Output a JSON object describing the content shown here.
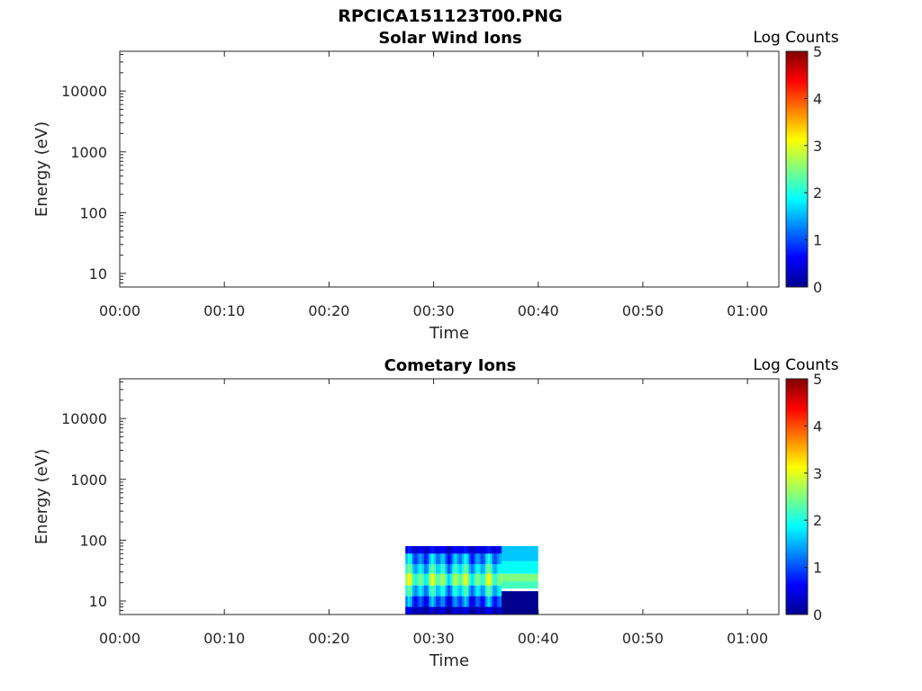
{
  "figure_title": "RPCICA151123T00.PNG",
  "colormap": [
    "#00008f",
    "#0000ff",
    "#0080ff",
    "#00ffff",
    "#80ff80",
    "#ffff00",
    "#ff8000",
    "#ff0000",
    "#800000"
  ],
  "chart_data": [
    {
      "type": "heatmap",
      "title": "Solar Wind Ions",
      "xlabel": "Time",
      "ylabel": "Energy (eV)",
      "x_ticks": [
        "00:00",
        "00:10",
        "00:20",
        "00:30",
        "00:40",
        "00:50",
        "01:00"
      ],
      "xlim_minutes": [
        0,
        63
      ],
      "y_scale": "log",
      "y_ticks": [
        10,
        100,
        1000,
        10000
      ],
      "y_tick_labels": [
        "10",
        "100",
        "1000",
        "10000"
      ],
      "ylim": [
        6,
        45000
      ],
      "colorbar_label": "Log Counts",
      "colorbar_ticks": [
        "0",
        "1",
        "2",
        "3",
        "4",
        "5"
      ],
      "clim": [
        0,
        5
      ],
      "data_blocks": []
    },
    {
      "type": "heatmap",
      "title": "Cometary Ions",
      "xlabel": "Time",
      "ylabel": "Energy (eV)",
      "x_ticks": [
        "00:00",
        "00:10",
        "00:20",
        "00:30",
        "00:40",
        "00:50",
        "01:00"
      ],
      "xlim_minutes": [
        0,
        63
      ],
      "y_scale": "log",
      "y_ticks": [
        10,
        100,
        1000,
        10000
      ],
      "y_tick_labels": [
        "10",
        "100",
        "1000",
        "10000"
      ],
      "ylim": [
        6,
        45000
      ],
      "colorbar_label": "Log Counts",
      "colorbar_ticks": [
        "0",
        "1",
        "2",
        "3",
        "4",
        "5"
      ],
      "clim": [
        0,
        5
      ],
      "data_blocks": [
        {
          "time_range_minutes": [
            27.3,
            40.0
          ],
          "energy_range_eV": [
            6,
            80
          ],
          "energy_bands": [
            {
              "energy_eV": [
                60,
                80
              ],
              "log_counts": 0.5
            },
            {
              "energy_eV": [
                40,
                60
              ],
              "log_counts": 1.3
            },
            {
              "energy_eV": [
                28,
                40
              ],
              "log_counts": 1.8
            },
            {
              "energy_eV": [
                18,
                28
              ],
              "log_counts": 2.4
            },
            {
              "energy_eV": [
                12,
                18
              ],
              "log_counts": 1.7
            },
            {
              "energy_eV": [
                8,
                12
              ],
              "log_counts": 1.0
            },
            {
              "energy_eV": [
                6,
                8
              ],
              "log_counts": 0.3
            }
          ],
          "late_segment": {
            "time_range_minutes": [
              36.5,
              40.0
            ],
            "bands": [
              {
                "energy_eV": [
                  45,
                  80
                ],
                "log_counts": 1.6
              },
              {
                "energy_eV": [
                  28,
                  45
                ],
                "log_counts": 1.9
              },
              {
                "energy_eV": [
                  21,
                  28
                ],
                "log_counts": 2.5
              },
              {
                "energy_eV": [
                  16,
                  21
                ],
                "log_counts": 2.2
              },
              {
                "energy_eV": [
                  14.5,
                  16
                ],
                "log_counts": null
              },
              {
                "energy_eV": [
                  6,
                  14.5
                ],
                "log_counts": 0.0
              }
            ]
          }
        }
      ]
    }
  ]
}
